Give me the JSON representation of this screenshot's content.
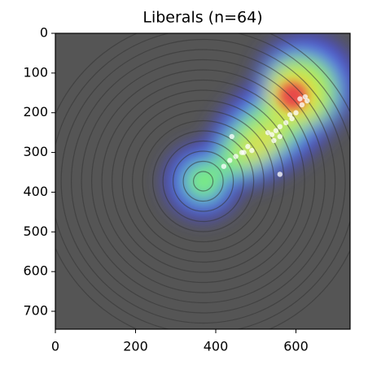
{
  "chart_data": {
    "type": "scatter",
    "title": "Liberals (n=64)",
    "x": [
      623,
      628,
      615,
      600,
      590,
      575,
      560,
      550,
      540,
      530,
      560,
      545,
      480,
      465,
      450,
      435,
      420,
      440,
      560,
      470,
      490,
      610,
      585
    ],
    "y": [
      160,
      170,
      180,
      200,
      215,
      225,
      235,
      245,
      255,
      250,
      260,
      270,
      285,
      300,
      310,
      320,
      335,
      260,
      355,
      300,
      295,
      165,
      205
    ],
    "color": "#ffffff",
    "xlim": [
      0,
      735
    ],
    "ylim": [
      745,
      0
    ],
    "xticks": [
      0,
      200,
      400,
      600
    ],
    "yticks": [
      0,
      100,
      200,
      300,
      400,
      500,
      600,
      700
    ]
  }
}
